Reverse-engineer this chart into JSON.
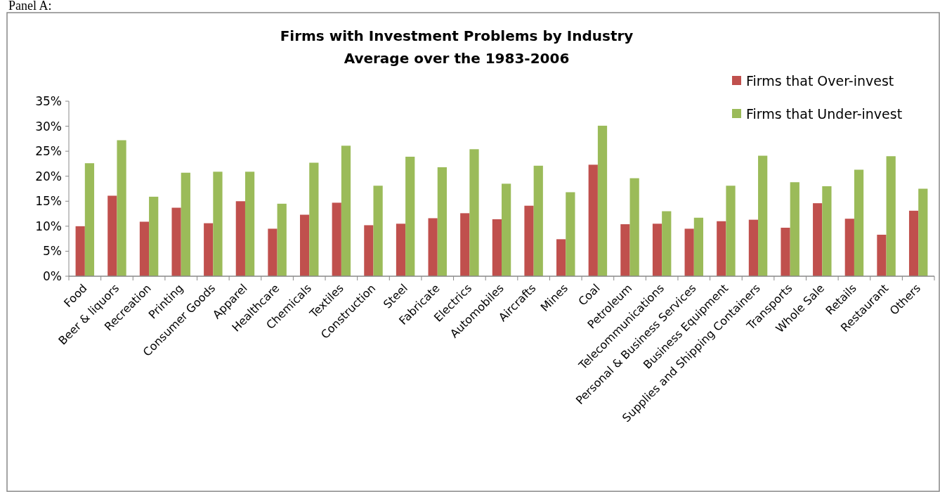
{
  "chart_data": {
    "type": "bar",
    "title": "Firms with Investment Problems by Industry\nAverage over the 1983-2006",
    "annotations": [
      "Panel A:"
    ],
    "categories": [
      "Food",
      "Beer & liquors",
      "Recreation",
      "Printing",
      "Consumer Goods",
      "Apparel",
      "Healthcare",
      "Chemicals",
      "Textiles",
      "Construction",
      "Steel",
      "Fabricate",
      "Electrics",
      "Automobiles",
      "Aircrafts",
      "Mines",
      "Coal",
      "Petroleum",
      "Telecommunications",
      "Personal & Business Services",
      "Business Equipment",
      "Supplies and Shipping Containers",
      "Transports",
      "Whole Sale",
      "Retails",
      "Restaurant",
      "Others"
    ],
    "series": [
      {
        "name": "Firms that Over-invest",
        "color": "#c0504d",
        "values": [
          10.0,
          16.1,
          10.9,
          13.7,
          10.6,
          15.0,
          9.5,
          12.3,
          14.7,
          10.2,
          10.5,
          11.6,
          12.6,
          11.4,
          14.1,
          7.4,
          22.3,
          10.4,
          10.5,
          9.5,
          11.0,
          11.3,
          9.7,
          14.6,
          11.5,
          8.3,
          13.1
        ]
      },
      {
        "name": "Firms that Under-invest",
        "color": "#9bbb59",
        "values": [
          22.6,
          27.2,
          15.9,
          20.7,
          20.9,
          20.9,
          14.5,
          22.7,
          26.1,
          18.1,
          23.9,
          21.8,
          25.4,
          18.5,
          22.1,
          16.8,
          30.1,
          19.6,
          13.0,
          11.7,
          18.1,
          24.1,
          18.8,
          18.0,
          21.3,
          24.0,
          17.5
        ]
      }
    ],
    "ylim": [
      0,
      35
    ],
    "yticks": [
      {
        "value": 0,
        "label": "0%"
      },
      {
        "value": 5,
        "label": "5%"
      },
      {
        "value": 10,
        "label": "10%"
      },
      {
        "value": 15,
        "label": "15%"
      },
      {
        "value": 20,
        "label": "20%"
      },
      {
        "value": 25,
        "label": "25%"
      },
      {
        "value": 30,
        "label": "30%"
      },
      {
        "value": 35,
        "label": "35%"
      }
    ],
    "legend": "top right"
  }
}
